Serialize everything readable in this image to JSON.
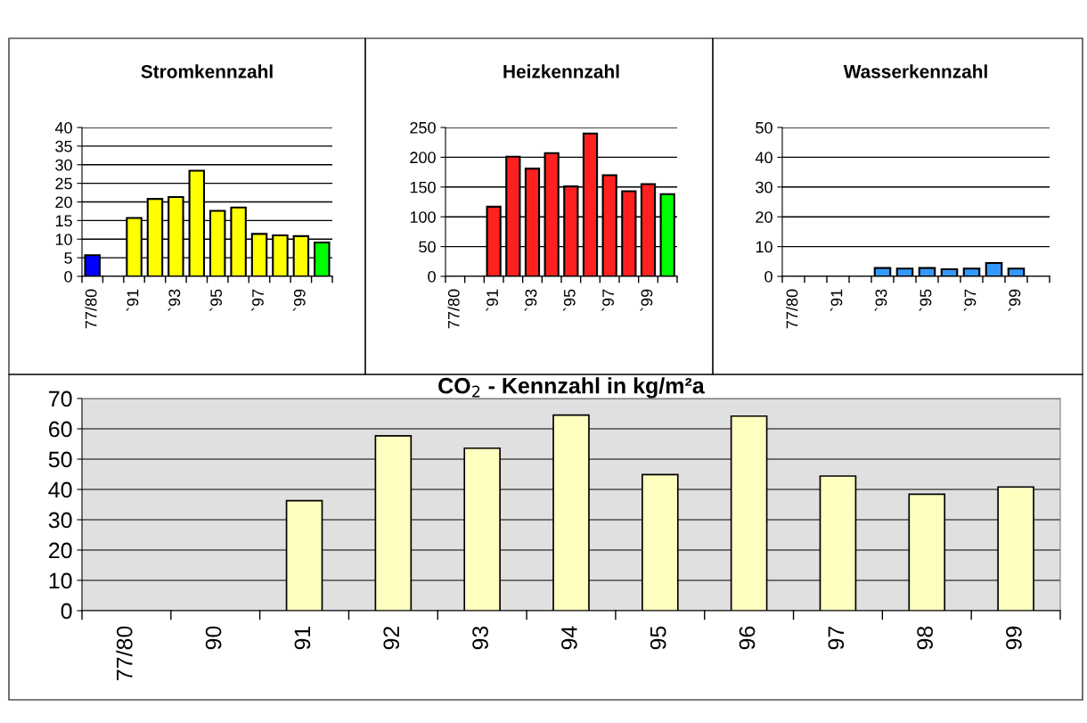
{
  "chart_data": [
    {
      "type": "bar",
      "title": "Stromkennzahl",
      "categories": [
        "77/80",
        null,
        "`91",
        null,
        "`93",
        null,
        "`95",
        null,
        "`97",
        null,
        "`99",
        null
      ],
      "values": [
        5.7,
        null,
        15.7,
        20.8,
        21.3,
        28.4,
        17.6,
        18.5,
        11.4,
        11.0,
        10.8,
        9.1
      ],
      "colors": [
        "#0000ff",
        "#ffff00",
        "#ffff00",
        "#ffff00",
        "#ffff00",
        "#ffff00",
        "#ffff00",
        "#ffff00",
        "#ffff00",
        "#ffff00",
        "#ffff00",
        "#00ff00"
      ],
      "ylim": [
        0,
        40
      ],
      "yticks": [
        0,
        5,
        10,
        15,
        20,
        25,
        30,
        35,
        40
      ],
      "grid": "y"
    },
    {
      "type": "bar",
      "title": "Heizkennzahl",
      "categories": [
        "77/80",
        null,
        "`91",
        null,
        "`93",
        null,
        "`95",
        null,
        "`97",
        null,
        "`99",
        null
      ],
      "values": [
        null,
        null,
        117,
        201,
        181,
        207,
        151,
        240,
        170,
        143,
        155,
        138
      ],
      "colors": [
        "#ff2020",
        "#ff2020",
        "#ff2020",
        "#ff2020",
        "#ff2020",
        "#ff2020",
        "#ff2020",
        "#ff2020",
        "#ff2020",
        "#ff2020",
        "#ff2020",
        "#00ff00"
      ],
      "ylim": [
        0,
        250
      ],
      "yticks": [
        0,
        50,
        100,
        150,
        200,
        250
      ],
      "grid": "y"
    },
    {
      "type": "bar",
      "title": "Wasserkennzahl",
      "categories": [
        "77/80",
        null,
        "`91",
        null,
        "`93",
        null,
        "`95",
        null,
        "`97",
        null,
        "`99",
        null
      ],
      "values": [
        null,
        null,
        null,
        null,
        2.8,
        2.6,
        2.8,
        2.4,
        2.6,
        4.5,
        2.6,
        null
      ],
      "color": "#3399ff",
      "ylim": [
        0,
        50
      ],
      "yticks": [
        0,
        10,
        20,
        30,
        40,
        50
      ],
      "grid": "y"
    },
    {
      "type": "bar",
      "title": "CO$_{2}$ - Kennzahl in kg/m²a",
      "categories": [
        "77/80",
        "90",
        "91",
        "92",
        "93",
        "94",
        "95",
        "96",
        "97",
        "98",
        "99"
      ],
      "values": [
        null,
        null,
        36.3,
        57.7,
        53.6,
        64.5,
        44.9,
        64.2,
        44.4,
        38.4,
        40.8
      ],
      "color": "#ffffc0",
      "ylim": [
        0,
        70
      ],
      "yticks": [
        0,
        10,
        20,
        30,
        40,
        50,
        60,
        70
      ],
      "grid": "y"
    }
  ]
}
